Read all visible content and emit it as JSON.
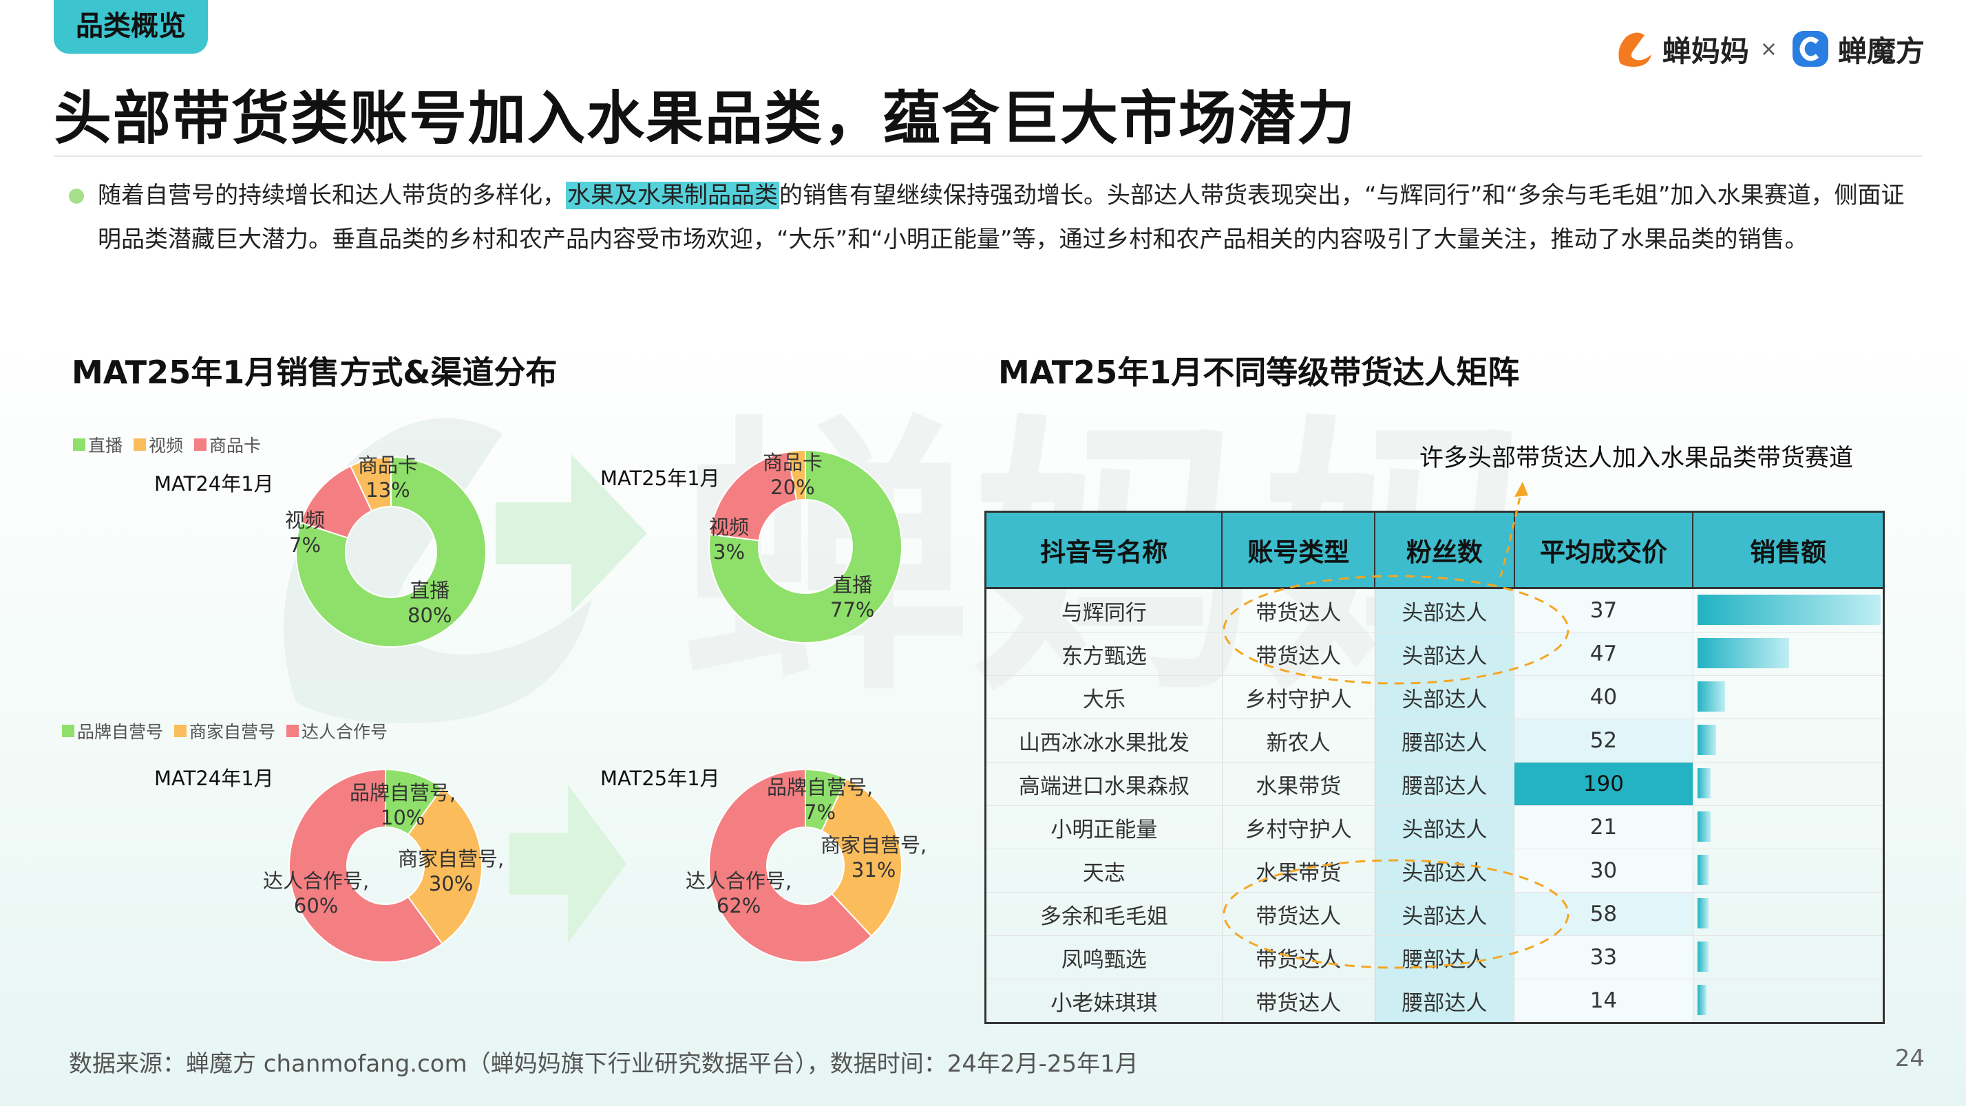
{
  "header": {
    "tag": "品类概览",
    "title": "头部带货类账号加入水果品类，蕴含巨大市场潜力",
    "brand1": "蝉妈妈",
    "brand_sep": "×",
    "brand2": "蝉魔方"
  },
  "summary": {
    "part1": "随着自营号的持续增长和达人带货的多样化，",
    "highlight": "水果及水果制品品类",
    "part2": "的销售有望继续保持强劲增长。头部达人带货表现突出，“与辉同行”和“多余与毛毛姐”加入水果赛道，侧面证明品类潜藏巨大潜力。垂直品类的乡村和农产品内容受市场欢迎，“大乐”和“小明正能量”等，通过乡村和农产品相关的内容吸引了大量关注，推动了水果品类的销售。"
  },
  "left_section_title": "MAT25年1月销售方式&渠道分布",
  "right_section_title": "MAT25年1月不同等级带货达人矩阵",
  "annotation": "许多头部带货达人加入水果品类带货赛道",
  "colors": {
    "green": "#8ee06a",
    "orange": "#fbbd5c",
    "red": "#f47f82",
    "teal": "#3cbccc"
  },
  "chart_data": [
    {
      "type": "pie",
      "title": "MAT24年1月",
      "legend": [
        "直播",
        "视频",
        "商品卡"
      ],
      "categories": [
        "直播",
        "视频",
        "商品卡"
      ],
      "values": [
        80,
        7,
        13
      ],
      "labels": [
        "直播\n80%",
        "视频\n7%",
        "商品卡\n13%"
      ]
    },
    {
      "type": "pie",
      "title": "MAT25年1月",
      "legend": [
        "直播",
        "视频",
        "商品卡"
      ],
      "categories": [
        "直播",
        "视频",
        "商品卡"
      ],
      "values": [
        77,
        3,
        20
      ],
      "labels": [
        "直播\n77%",
        "视频\n3%",
        "商品卡\n20%"
      ]
    },
    {
      "type": "pie",
      "title": "MAT24年1月",
      "legend": [
        "品牌自营号",
        "商家自营号",
        "达人合作号"
      ],
      "categories": [
        "品牌自营号",
        "商家自营号",
        "达人合作号"
      ],
      "values": [
        10,
        30,
        60
      ],
      "labels": [
        "品牌自营号,\n10%",
        "商家自营号,\n30%",
        "达人合作号,\n60%"
      ]
    },
    {
      "type": "pie",
      "title": "MAT25年1月",
      "legend": [
        "品牌自营号",
        "商家自营号",
        "达人合作号"
      ],
      "categories": [
        "品牌自营号",
        "商家自营号",
        "达人合作号"
      ],
      "values": [
        7,
        31,
        62
      ],
      "labels": [
        "品牌自营号,\n7%",
        "商家自营号,\n31%",
        "达人合作号,\n62%"
      ]
    },
    {
      "type": "table",
      "columns": [
        "抖音号名称",
        "账号类型",
        "粉丝数",
        "平均成交价",
        "销售额"
      ],
      "rows": [
        [
          "与辉同行",
          "带货达人",
          "头部达人",
          "37"
        ],
        [
          "东方甄选",
          "带货达人",
          "头部达人",
          "47"
        ],
        [
          "大乐",
          "乡村守护人",
          "头部达人",
          "40"
        ],
        [
          "山西冰冰水果批发",
          "新农人",
          "腰部达人",
          "52"
        ],
        [
          "高端进口水果森叔",
          "水果带货",
          "腰部达人",
          "190"
        ],
        [
          "小明正能量",
          "乡村守护人",
          "头部达人",
          "21"
        ],
        [
          "天志",
          "水果带货",
          "头部达人",
          "30"
        ],
        [
          "多余和毛毛姐",
          "带货达人",
          "头部达人",
          "58"
        ],
        [
          "凤鸣甄选",
          "带货达人",
          "腰部达人",
          "33"
        ],
        [
          "小老妹琪琪",
          "带货达人",
          "腰部达人",
          "14"
        ]
      ],
      "sales_relative": [
        1.0,
        0.5,
        0.15,
        0.1,
        0.07,
        0.07,
        0.06,
        0.06,
        0.06,
        0.05
      ]
    }
  ],
  "footer": {
    "source": "数据来源：蝉魔方 chanmofang.com（蝉妈妈旗下行业研究数据平台），数据时间：24年2月-25年1月",
    "page": "24"
  }
}
